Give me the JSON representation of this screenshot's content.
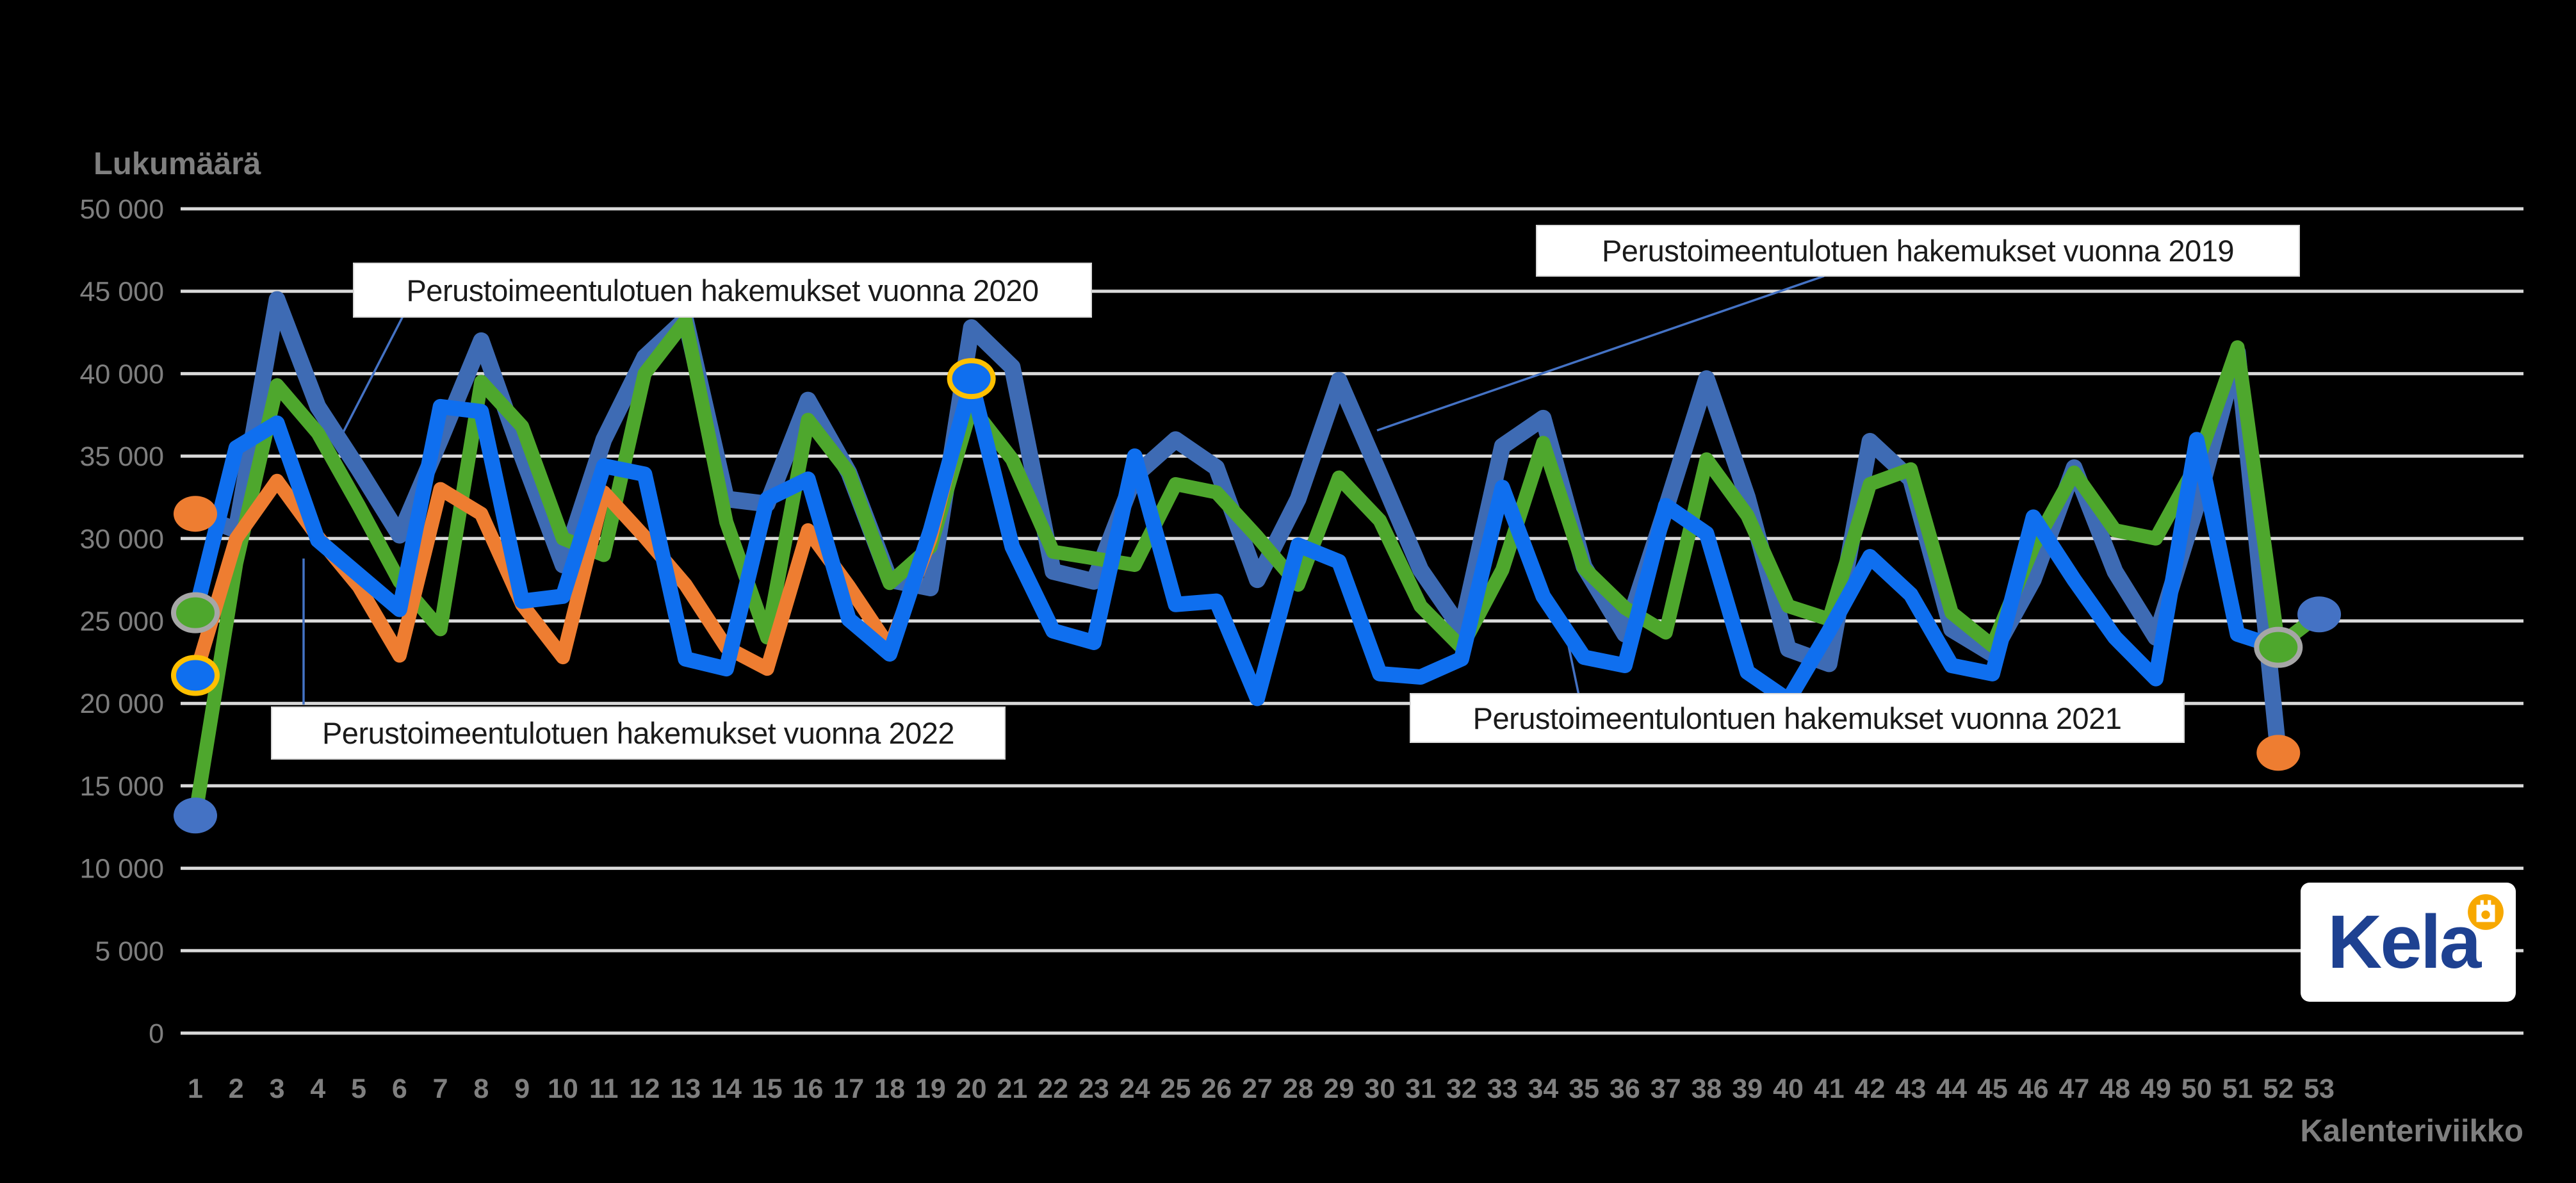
{
  "background": "#000000",
  "axes": {
    "y_title": "Lukumäärä",
    "x_title": "Kalenteriviikko",
    "y_ticks": [
      "0",
      "5 000",
      "10 000",
      "15 000",
      "20 000",
      "25 000",
      "30 000",
      "35 000",
      "40 000",
      "45 000",
      "50 000"
    ],
    "weeks": [
      1,
      2,
      3,
      4,
      5,
      6,
      7,
      8,
      9,
      10,
      11,
      12,
      13,
      14,
      15,
      16,
      17,
      18,
      19,
      20,
      21,
      22,
      23,
      24,
      25,
      26,
      27,
      28,
      29,
      30,
      31,
      32,
      33,
      34,
      35,
      36,
      37,
      38,
      39,
      40,
      41,
      42,
      43,
      44,
      45,
      46,
      47,
      48,
      49,
      50,
      51,
      52,
      53
    ]
  },
  "annotations": [
    {
      "id": "y2020",
      "text": "Perustoimeentulotuen hakemukset vuonna 2020"
    },
    {
      "id": "y2019",
      "text": "Perustoimeentulotuen hakemukset vuonna 2019"
    },
    {
      "id": "y2021",
      "text": "Perustoimeentulontuen hakemukset vuonna 2021"
    },
    {
      "id": "y2022",
      "text": "Perustoimeentulotuen hakemukset vuonna 2022"
    }
  ],
  "logo": {
    "text": "Kela",
    "brand_blue": "#1e4191",
    "brand_orange": "#f7a800"
  },
  "chart_data": {
    "type": "line",
    "title": "",
    "xlabel": "Kalenteriviikko",
    "ylabel": "Lukumäärä",
    "x": [
      1,
      2,
      3,
      4,
      5,
      6,
      7,
      8,
      9,
      10,
      11,
      12,
      13,
      14,
      15,
      16,
      17,
      18,
      19,
      20,
      21,
      22,
      23,
      24,
      25,
      26,
      27,
      28,
      29,
      30,
      31,
      32,
      33,
      34,
      35,
      36,
      37,
      38,
      39,
      40,
      41,
      42,
      43,
      44,
      45,
      46,
      47,
      48,
      49,
      50,
      51,
      52,
      53
    ],
    "ylim": [
      0,
      50000
    ],
    "grid": true,
    "legend_position": "floating-labels",
    "series": [
      {
        "name": "Perustoimeentulotuen hakemukset vuonna 2019",
        "color": "#3e6bb4",
        "values": [
          31500,
          30500,
          44500,
          38000,
          34200,
          30200,
          36000,
          42000,
          35000,
          28400,
          36000,
          41000,
          43300,
          32400,
          32100,
          38400,
          34000,
          27500,
          27000,
          42800,
          40400,
          28000,
          27400,
          33800,
          36000,
          34300,
          27500,
          32400,
          39600,
          33900,
          28100,
          24500,
          35600,
          37300,
          28300,
          24200,
          31800,
          39700,
          32500,
          23300,
          22400,
          35900,
          33600,
          24500,
          23000,
          27500,
          34300,
          28000,
          24000,
          32000,
          41300,
          17000
        ]
      },
      {
        "name": "Perustoimeentulotuen hakemukset vuonna 2020",
        "color": "#4ea72d",
        "values": [
          13200,
          28500,
          39300,
          36400,
          32000,
          27400,
          24500,
          39500,
          36800,
          30000,
          29000,
          40000,
          43200,
          31000,
          24000,
          37200,
          34000,
          27300,
          29500,
          38000,
          34800,
          29200,
          28800,
          28400,
          33300,
          32800,
          30100,
          27200,
          33700,
          31100,
          25900,
          23400,
          28100,
          35800,
          28200,
          25800,
          24300,
          34800,
          31400,
          25900,
          25100,
          33300,
          34200,
          25500,
          23500,
          29500,
          34000,
          30500,
          30000,
          34500,
          41600,
          23500,
          25400
        ]
      },
      {
        "name": "Perustoimeentulontuen hakemukset vuonna 2021",
        "color": "#0f6fef",
        "values": [
          25500,
          35500,
          37000,
          29900,
          27800,
          25700,
          38000,
          37700,
          26200,
          26500,
          34400,
          33900,
          22700,
          22100,
          32400,
          33600,
          25100,
          23000,
          30500,
          39500,
          29500,
          24400,
          23700,
          35000,
          26000,
          26200,
          20300,
          29600,
          28600,
          21800,
          21600,
          22700,
          33100,
          26500,
          22800,
          22300,
          32000,
          30300,
          21900,
          20200,
          24400,
          28900,
          26600,
          22300,
          21800,
          31300,
          27500,
          24000,
          21500,
          36000,
          24200,
          23400
        ]
      },
      {
        "name": "Perustoimeentulotuen hakemukset vuonna 2022",
        "color": "#ee7d31",
        "values": [
          21700,
          30000,
          33500,
          30100,
          27100,
          22900,
          33000,
          31500,
          26000,
          22800,
          32800,
          30100,
          27200,
          23400,
          22100,
          30500,
          27100,
          23400,
          30000,
          39700
        ]
      }
    ],
    "endpoint_markers": [
      {
        "week": 1,
        "value": 31500,
        "fill": "#ee7d31",
        "ring": null,
        "series": "2019 start"
      },
      {
        "week": 1,
        "value": 25500,
        "fill": "#4ea72d",
        "ring": "#a6a6a6",
        "series": "2021 start"
      },
      {
        "week": 1,
        "value": 21700,
        "fill": "#0f6fef",
        "ring": "#ffc000",
        "series": "2022 start"
      },
      {
        "week": 1,
        "value": 13200,
        "fill": "#4472c4",
        "ring": null,
        "series": "2020 start"
      },
      {
        "week": 20,
        "value": 39700,
        "fill": "#0f6fef",
        "ring": "#ffc000",
        "series": "2022 end"
      },
      {
        "week": 52,
        "value": 17000,
        "fill": "#ee7d31",
        "ring": null,
        "series": "2019 end"
      },
      {
        "week": 52,
        "value": 23400,
        "fill": "#4ea72d",
        "ring": "#a6a6a6",
        "series": "2021 end"
      },
      {
        "week": 53,
        "value": 25400,
        "fill": "#4472c4",
        "ring": null,
        "series": "2020 end"
      }
    ],
    "gridline_color": "#d9d9d9",
    "callout_color": "#4472c4"
  }
}
